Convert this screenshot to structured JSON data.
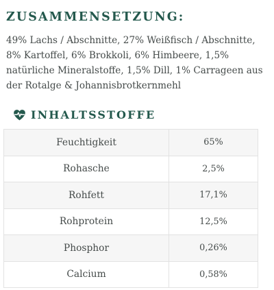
{
  "composition": {
    "heading": "ZUSAMMENSETZUNG:",
    "text": "49% Lachs / Abschnitte, 27% Weißfisch / Abschnitte, 8% Kartoffel, 6% Brokkoli, 6% Himbeere, 1,5% natürliche Mineralstoffe, 1,5% Dill, 1% Carrageen aus der Rotalge & Johannisbrotkernmehl"
  },
  "nutrients": {
    "icon": "heart-pulse-icon",
    "title": "INHALTSSTOFFE",
    "rows": [
      {
        "name": "Feuchtigkeit",
        "value": "65%"
      },
      {
        "name": "Rohasche",
        "value": "2,5%"
      },
      {
        "name": "Rohfett",
        "value": "17,1%"
      },
      {
        "name": "Rohprotein",
        "value": "12,5%"
      },
      {
        "name": "Phosphor",
        "value": "0,26%"
      },
      {
        "name": "Calcium",
        "value": "0,58%"
      }
    ]
  },
  "colors": {
    "heading": "#24594d",
    "text": "#444a49",
    "row_alt": "#f6f6f6",
    "border": "#e2e2e2"
  }
}
